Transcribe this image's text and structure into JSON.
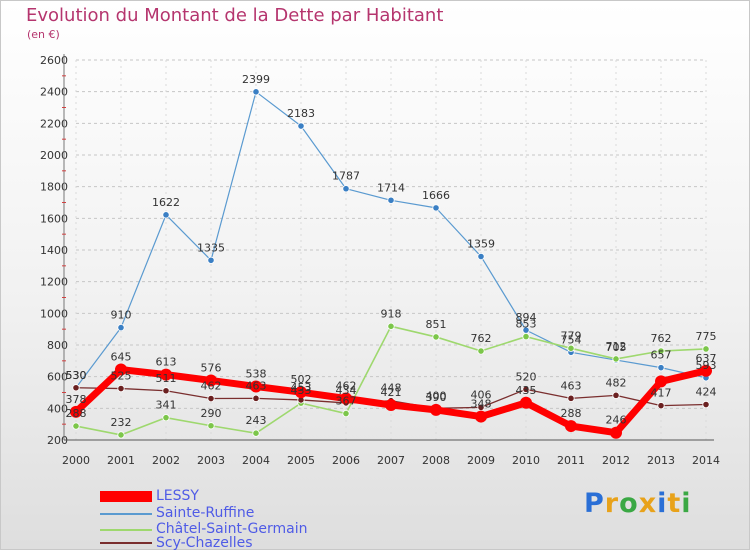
{
  "title": "Evolution du Montant de la Dette par Habitant",
  "subtitle": "(en €)",
  "logo": {
    "letters": [
      "P",
      "r",
      "o",
      "x",
      "i",
      "t",
      "i"
    ],
    "colors": [
      "#2a6fd6",
      "#e8a21a",
      "#3aa844",
      "#e8a21a",
      "#2a6fd6",
      "#e8a21a",
      "#3aa844"
    ]
  },
  "chart_data": {
    "type": "line",
    "x": [
      "2000",
      "2001",
      "2002",
      "2003",
      "2004",
      "2005",
      "2006",
      "2007",
      "2008",
      "2009",
      "2010",
      "2011",
      "2012",
      "2013",
      "2014"
    ],
    "ylim": [
      200,
      2600
    ],
    "yticks": [
      200,
      400,
      600,
      800,
      1000,
      1200,
      1400,
      1600,
      1800,
      2000,
      2200,
      2400,
      2600
    ],
    "grid": "horizontal dashed",
    "legend_position": "bottom-left",
    "series": [
      {
        "name": "Sainte-Ruffine",
        "color": "#5a9ad0",
        "marker": "#3a7fc4",
        "values": [
          530,
          910,
          1622,
          1335,
          2399,
          2183,
          1787,
          1714,
          1666,
          1359,
          894,
          754,
          705,
          657,
          593
        ],
        "labels": [
          "530",
          "910",
          "1622",
          "1335",
          "2399",
          "2183",
          "1787",
          "1714",
          "1666",
          "1359",
          "894",
          "754",
          "705",
          "657",
          "593"
        ]
      },
      {
        "name": "Châtel-Saint-Germain",
        "color": "#9ed86e",
        "marker": "#7cc64a",
        "values": [
          288,
          232,
          341,
          290,
          243,
          433,
          367,
          918,
          851,
          762,
          853,
          779,
          712,
          762,
          775
        ],
        "labels": [
          "288",
          "232",
          "341",
          "290",
          "243",
          "433",
          "367",
          "918",
          "851",
          "762",
          "853",
          "779",
          "712",
          "762",
          "775"
        ]
      },
      {
        "name": "Scy-Chazelles",
        "color": "#7a2e2e",
        "marker": "#6a2020",
        "values": [
          530,
          525,
          511,
          462,
          463,
          453,
          434,
          448,
          400,
          406,
          520,
          463,
          482,
          417,
          424
        ],
        "labels": [
          "530",
          "525",
          "511",
          "462",
          "463",
          "453",
          "434",
          "448",
          "400",
          "406",
          "520",
          "463",
          "482",
          "417",
          "424"
        ]
      },
      {
        "name": "LESSY",
        "color": "#ff0000",
        "marker": "#ff0000",
        "values": [
          378,
          645,
          613,
          576,
          538,
          502,
          462,
          421,
          390,
          348,
          435,
          288,
          246,
          570,
          637
        ],
        "labels": [
          "378",
          "645",
          "613",
          "576",
          "538",
          "502",
          "462",
          "421",
          "390",
          "348",
          "435",
          "288",
          "246",
          "",
          "637"
        ]
      }
    ]
  }
}
